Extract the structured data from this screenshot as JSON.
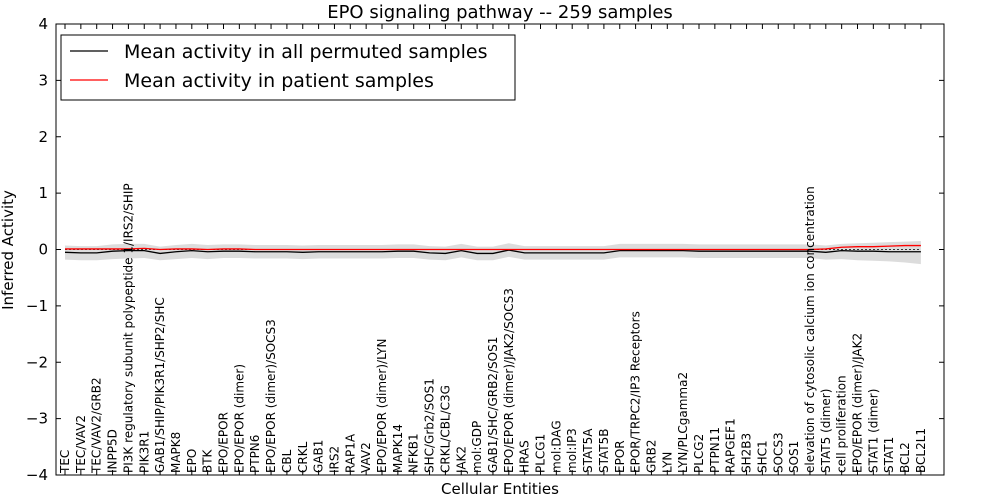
{
  "chart_data": {
    "type": "line",
    "title": "EPO signaling pathway -- 259 samples",
    "xlabel": "Cellular Entities",
    "ylabel": "Inferred Activity",
    "ylim": [
      -4,
      4
    ],
    "yticks": [
      "−4",
      "−3",
      "−2",
      "−1",
      "0",
      "1",
      "2",
      "3",
      "4"
    ],
    "legend_position": "upper-left",
    "colors": {
      "permuted": "#000000",
      "patient": "#ff0000",
      "band": "#bfbfbf",
      "zero_line": "#000000"
    },
    "categories": [
      "TEC",
      "TEC/VAV2",
      "TEC/VAV2/GRB2",
      "INPP5D",
      "PI3K regulatory subunit polypeptide 1/IRS2/SHIP",
      "PIK3R1",
      "GAB1/SHIP/PIK3R1/SHP2/SHC",
      "MAPK8",
      "EPO",
      "BTK",
      "EPO/EPOR",
      "EPO/EPOR (dimer)",
      "PTPN6",
      "EPO/EPOR (dimer)/SOCS3",
      "CBL",
      "CRKL",
      "GAB1",
      "IRS2",
      "RAP1A",
      "VAV2",
      "EPO/EPOR (dimer)/LYN",
      "MAPK14",
      "NFKB1",
      "SHC/Grb2/SOS1",
      "CRKL/CBL/C3G",
      "JAK2",
      "mol:GDP",
      "GAB1/SHC/GRB2/SOS1",
      "EPO/EPOR (dimer)/JAK2/SOCS3",
      "HRAS",
      "PLCG1",
      "mol:DAG",
      "mol:IP3",
      "STAT5A",
      "STAT5B",
      "EPOR",
      "EPOR/TRPC2/IP3 Receptors",
      "GRB2",
      "LYN",
      "LYN/PLCgamma2",
      "PLCG2",
      "PTPN11",
      "RAPGEF1",
      "SH2B3",
      "SHC1",
      "SOCS3",
      "SOS1",
      "elevation of cytosolic calcium ion concentration",
      "STAT5 (dimer)",
      "cell proliferation",
      "EPO/EPOR (dimer)/JAK2",
      "STAT1 (dimer)",
      "STAT1",
      "BCL2",
      "BCL2L1"
    ],
    "series": [
      {
        "name": "Mean activity in all permuted samples",
        "values": [
          -0.05,
          -0.06,
          -0.06,
          -0.03,
          -0.02,
          -0.02,
          -0.07,
          -0.04,
          -0.02,
          -0.04,
          -0.03,
          -0.03,
          -0.04,
          -0.04,
          -0.04,
          -0.05,
          -0.04,
          -0.04,
          -0.04,
          -0.04,
          -0.04,
          -0.03,
          -0.03,
          -0.06,
          -0.07,
          -0.02,
          -0.07,
          -0.07,
          -0.01,
          -0.06,
          -0.06,
          -0.06,
          -0.06,
          -0.06,
          -0.06,
          -0.02,
          -0.02,
          -0.02,
          -0.02,
          -0.02,
          -0.03,
          -0.03,
          -0.03,
          -0.03,
          -0.03,
          -0.03,
          -0.03,
          -0.03,
          -0.05,
          -0.02,
          -0.03,
          -0.03,
          -0.04,
          -0.04,
          -0.04
        ]
      },
      {
        "name": "Mean activity in patient samples",
        "values": [
          0.01,
          0.01,
          0.01,
          0.01,
          0.01,
          0.02,
          0.0,
          0.01,
          0.01,
          0.0,
          0.01,
          0.01,
          0.0,
          0.0,
          0.0,
          0.0,
          0.0,
          0.0,
          0.0,
          0.0,
          0.0,
          0.0,
          0.0,
          0.0,
          0.0,
          0.0,
          0.0,
          0.0,
          0.0,
          0.0,
          0.0,
          0.0,
          0.0,
          0.0,
          0.0,
          0.0,
          0.0,
          0.0,
          0.0,
          0.0,
          0.0,
          0.0,
          0.0,
          0.0,
          0.0,
          0.0,
          0.0,
          0.0,
          0.01,
          0.04,
          0.05,
          0.05,
          0.06,
          0.07,
          0.07
        ]
      }
    ],
    "band": {
      "lower": [
        -0.18,
        -0.19,
        -0.19,
        -0.17,
        -0.16,
        -0.15,
        -0.19,
        -0.17,
        -0.15,
        -0.17,
        -0.15,
        -0.15,
        -0.16,
        -0.16,
        -0.16,
        -0.17,
        -0.16,
        -0.16,
        -0.16,
        -0.16,
        -0.16,
        -0.15,
        -0.15,
        -0.18,
        -0.19,
        -0.14,
        -0.19,
        -0.19,
        -0.13,
        -0.18,
        -0.18,
        -0.18,
        -0.18,
        -0.18,
        -0.18,
        -0.14,
        -0.14,
        -0.14,
        -0.14,
        -0.14,
        -0.15,
        -0.15,
        -0.15,
        -0.15,
        -0.15,
        -0.15,
        -0.15,
        -0.15,
        -0.18,
        -0.17,
        -0.19,
        -0.2,
        -0.21,
        -0.23,
        -0.26
      ],
      "upper": [
        0.07,
        0.06,
        0.06,
        0.09,
        0.1,
        0.1,
        0.05,
        0.08,
        0.1,
        0.08,
        0.09,
        0.09,
        0.08,
        0.08,
        0.08,
        0.07,
        0.08,
        0.08,
        0.08,
        0.08,
        0.08,
        0.09,
        0.09,
        0.06,
        0.05,
        0.1,
        0.05,
        0.05,
        0.11,
        0.06,
        0.06,
        0.06,
        0.06,
        0.06,
        0.06,
        0.1,
        0.1,
        0.1,
        0.1,
        0.1,
        0.09,
        0.09,
        0.09,
        0.09,
        0.09,
        0.09,
        0.09,
        0.09,
        0.07,
        0.1,
        0.11,
        0.12,
        0.13,
        0.14,
        0.15
      ]
    }
  }
}
